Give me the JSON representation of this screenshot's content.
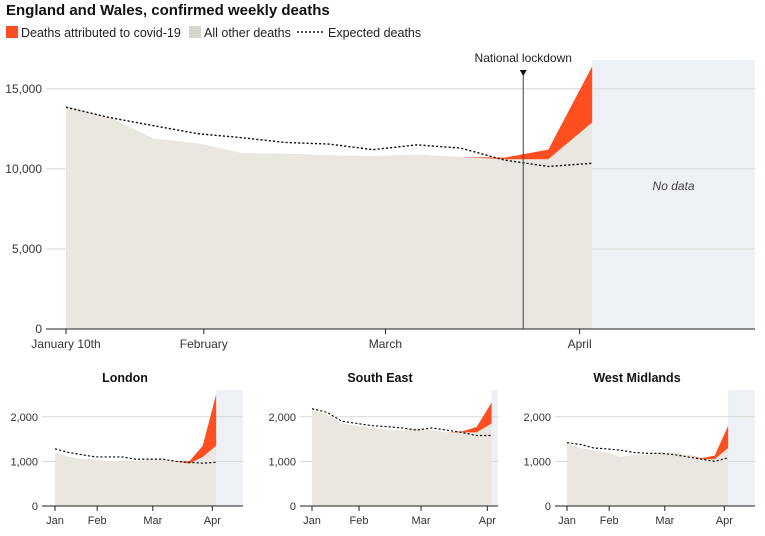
{
  "title": "England and Wales, confirmed weekly deaths",
  "legend": [
    {
      "label": "Deaths attributed to covid-19",
      "color": "#ff4e1f",
      "kind": "swatch"
    },
    {
      "label": "All other deaths",
      "color": "#d8d6cc",
      "kind": "swatch"
    },
    {
      "label": "Expected deaths",
      "color": "#111111",
      "kind": "dotted-line"
    }
  ],
  "colors": {
    "covid": "#ff4e1f",
    "other": "#e9e7df",
    "no_data_bg": "#edf1f5",
    "grid": "#d7d7d7",
    "axis": "#222222",
    "expected": "#111111"
  },
  "chart_data": [
    {
      "type": "area",
      "panel": "England and Wales",
      "title": "",
      "x": [
        "2020-01-10",
        "2020-01-17",
        "2020-01-24",
        "2020-01-31",
        "2020-02-07",
        "2020-02-14",
        "2020-02-21",
        "2020-02-28",
        "2020-03-06",
        "2020-03-13",
        "2020-03-20",
        "2020-03-27",
        "2020-04-03"
      ],
      "series": [
        {
          "name": "All other deaths",
          "values": [
            13900,
            13200,
            11900,
            11600,
            11000,
            10950,
            10850,
            10800,
            10900,
            10750,
            10600,
            10600,
            12900
          ]
        },
        {
          "name": "Deaths attributed to covid-19",
          "values": [
            0,
            0,
            0,
            0,
            0,
            0,
            0,
            0,
            0,
            0,
            100,
            600,
            3500
          ]
        },
        {
          "name": "Expected deaths",
          "values": [
            13850,
            13200,
            12700,
            12200,
            11950,
            11650,
            11550,
            11200,
            11500,
            11300,
            10550,
            10150,
            10350
          ]
        }
      ],
      "xticks": [
        {
          "date": "2020-01-10",
          "label": "January 10th"
        },
        {
          "date": "2020-02-01",
          "label": "February"
        },
        {
          "date": "2020-03-01",
          "label": "March"
        },
        {
          "date": "2020-04-01",
          "label": "April"
        }
      ],
      "yticks": [
        0,
        5000,
        10000,
        15000
      ],
      "ytick_labels": [
        "0",
        "5,000",
        "10,000",
        "15,000"
      ],
      "ylim": [
        0,
        16800
      ],
      "xlim": [
        "2020-01-10",
        "2020-04-29"
      ],
      "no_data_from": "2020-04-03",
      "no_data_label": "No data",
      "annotations": [
        {
          "date": "2020-03-23",
          "label": "National lockdown"
        }
      ]
    },
    {
      "type": "area",
      "panel": "London",
      "title": "London",
      "x": [
        "2020-01-10",
        "2020-01-17",
        "2020-01-24",
        "2020-01-31",
        "2020-02-07",
        "2020-02-14",
        "2020-02-21",
        "2020-02-28",
        "2020-03-06",
        "2020-03-13",
        "2020-03-20",
        "2020-03-27",
        "2020-04-03"
      ],
      "series": [
        {
          "name": "All other deaths",
          "values": [
            1200,
            1100,
            1050,
            1050,
            1000,
            1000,
            1000,
            1050,
            1050,
            1000,
            950,
            1100,
            1350
          ]
        },
        {
          "name": "Deaths attributed to covid-19",
          "values": [
            0,
            0,
            0,
            0,
            0,
            0,
            0,
            0,
            0,
            0,
            50,
            250,
            1150
          ]
        },
        {
          "name": "Expected deaths",
          "values": [
            1280,
            1200,
            1150,
            1100,
            1100,
            1100,
            1050,
            1050,
            1050,
            1000,
            980,
            960,
            980
          ]
        }
      ],
      "xticks": [
        {
          "date": "2020-01-10",
          "label": "Jan"
        },
        {
          "date": "2020-02-01",
          "label": "Feb"
        },
        {
          "date": "2020-03-01",
          "label": "Mar"
        },
        {
          "date": "2020-04-01",
          "label": "Apr"
        }
      ],
      "yticks": [
        0,
        1000,
        2000
      ],
      "ytick_labels": [
        "0",
        "1,000",
        "2,000"
      ],
      "ylim": [
        0,
        2600
      ],
      "xlim": [
        "2020-01-10",
        "2020-04-17"
      ],
      "no_data_from": "2020-04-03"
    },
    {
      "type": "area",
      "panel": "South East",
      "title": "South East",
      "x": [
        "2020-01-10",
        "2020-01-17",
        "2020-01-24",
        "2020-01-31",
        "2020-02-07",
        "2020-02-14",
        "2020-02-21",
        "2020-02-28",
        "2020-03-06",
        "2020-03-13",
        "2020-03-20",
        "2020-03-27",
        "2020-04-03"
      ],
      "series": [
        {
          "name": "All other deaths",
          "values": [
            2150,
            2050,
            1850,
            1800,
            1750,
            1700,
            1700,
            1750,
            1700,
            1650,
            1650,
            1650,
            1850
          ]
        },
        {
          "name": "Deaths attributed to covid-19",
          "values": [
            0,
            0,
            0,
            0,
            0,
            0,
            0,
            0,
            0,
            0,
            20,
            120,
            470
          ]
        },
        {
          "name": "Expected deaths",
          "values": [
            2180,
            2100,
            1900,
            1850,
            1800,
            1780,
            1750,
            1700,
            1750,
            1700,
            1650,
            1580,
            1580
          ]
        }
      ],
      "xticks": [
        {
          "date": "2020-01-10",
          "label": "Jan"
        },
        {
          "date": "2020-02-01",
          "label": "Feb"
        },
        {
          "date": "2020-03-01",
          "label": "Mar"
        },
        {
          "date": "2020-04-01",
          "label": "Apr"
        }
      ],
      "yticks": [
        0,
        1000,
        2000
      ],
      "ytick_labels": [
        "0",
        "1,000",
        "2,000"
      ],
      "ylim": [
        0,
        2600
      ],
      "xlim": [
        "2020-01-10",
        "2020-04-06"
      ],
      "no_data_from": "2020-04-03"
    },
    {
      "type": "area",
      "panel": "West Midlands",
      "title": "West Midlands",
      "x": [
        "2020-01-10",
        "2020-01-17",
        "2020-01-24",
        "2020-01-31",
        "2020-02-07",
        "2020-02-14",
        "2020-02-21",
        "2020-02-28",
        "2020-03-06",
        "2020-03-13",
        "2020-03-20",
        "2020-03-27",
        "2020-04-03"
      ],
      "series": [
        {
          "name": "All other deaths",
          "values": [
            1400,
            1300,
            1250,
            1200,
            1100,
            1150,
            1150,
            1200,
            1200,
            1150,
            1050,
            1050,
            1300
          ]
        },
        {
          "name": "Deaths attributed to covid-19",
          "values": [
            0,
            0,
            0,
            0,
            0,
            0,
            0,
            0,
            0,
            0,
            20,
            80,
            500
          ]
        },
        {
          "name": "Expected deaths",
          "values": [
            1420,
            1380,
            1300,
            1280,
            1250,
            1200,
            1180,
            1180,
            1150,
            1100,
            1050,
            1000,
            1080
          ]
        }
      ],
      "xticks": [
        {
          "date": "2020-01-10",
          "label": "Jan"
        },
        {
          "date": "2020-02-01",
          "label": "Feb"
        },
        {
          "date": "2020-03-01",
          "label": "Mar"
        },
        {
          "date": "2020-04-01",
          "label": "Apr"
        }
      ],
      "yticks": [
        0,
        1000,
        2000
      ],
      "ytick_labels": [
        "0",
        "1,000",
        "2,000"
      ],
      "ylim": [
        0,
        2600
      ],
      "xlim": [
        "2020-01-10",
        "2020-04-17"
      ],
      "no_data_from": "2020-04-03"
    }
  ]
}
